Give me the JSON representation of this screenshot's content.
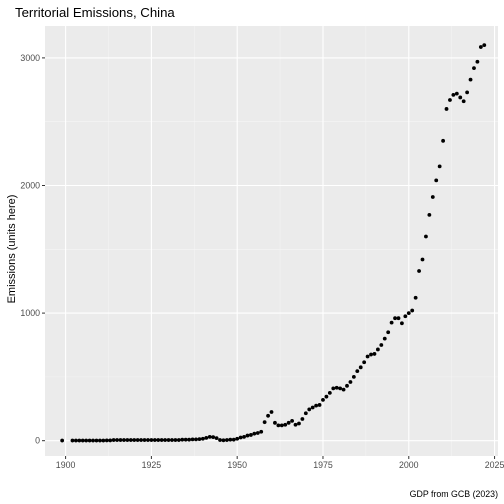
{
  "chart_data": {
    "type": "scatter",
    "title": "Territorial Emissions, China",
    "xlabel": "",
    "ylabel": "Emissions (units here)",
    "caption": "GDP from GCB (2023)",
    "xlim": [
      1894,
      2026
    ],
    "ylim": [
      -120,
      3250
    ],
    "x_ticks": [
      1900,
      1925,
      1950,
      1975,
      2000,
      2025
    ],
    "y_ticks": [
      0,
      1000,
      2000,
      3000
    ],
    "grid": true,
    "legend": "none",
    "colors": {
      "panel_background": "#ebebeb",
      "grid_major": "#ffffff",
      "grid_minor": "#f5f5f5",
      "point": "#000000",
      "tick_label": "#4d4d4d"
    },
    "points": [
      {
        "x": 1899,
        "y": 1
      },
      {
        "x": 1902,
        "y": 1
      },
      {
        "x": 1903,
        "y": 1
      },
      {
        "x": 1904,
        "y": 1
      },
      {
        "x": 1905,
        "y": 1
      },
      {
        "x": 1906,
        "y": 1
      },
      {
        "x": 1907,
        "y": 1
      },
      {
        "x": 1908,
        "y": 1
      },
      {
        "x": 1909,
        "y": 1
      },
      {
        "x": 1910,
        "y": 1
      },
      {
        "x": 1911,
        "y": 1
      },
      {
        "x": 1912,
        "y": 2
      },
      {
        "x": 1913,
        "y": 2
      },
      {
        "x": 1914,
        "y": 5
      },
      {
        "x": 1915,
        "y": 5
      },
      {
        "x": 1916,
        "y": 5
      },
      {
        "x": 1917,
        "y": 5
      },
      {
        "x": 1918,
        "y": 5
      },
      {
        "x": 1919,
        "y": 5
      },
      {
        "x": 1920,
        "y": 5
      },
      {
        "x": 1921,
        "y": 5
      },
      {
        "x": 1922,
        "y": 5
      },
      {
        "x": 1923,
        "y": 5
      },
      {
        "x": 1924,
        "y": 5
      },
      {
        "x": 1925,
        "y": 5
      },
      {
        "x": 1926,
        "y": 5
      },
      {
        "x": 1927,
        "y": 5
      },
      {
        "x": 1928,
        "y": 5
      },
      {
        "x": 1929,
        "y": 5
      },
      {
        "x": 1930,
        "y": 5
      },
      {
        "x": 1931,
        "y": 5
      },
      {
        "x": 1932,
        "y": 5
      },
      {
        "x": 1933,
        "y": 5
      },
      {
        "x": 1934,
        "y": 8
      },
      {
        "x": 1935,
        "y": 8
      },
      {
        "x": 1936,
        "y": 8
      },
      {
        "x": 1937,
        "y": 10
      },
      {
        "x": 1938,
        "y": 10
      },
      {
        "x": 1939,
        "y": 12
      },
      {
        "x": 1940,
        "y": 15
      },
      {
        "x": 1941,
        "y": 22
      },
      {
        "x": 1942,
        "y": 30
      },
      {
        "x": 1943,
        "y": 28
      },
      {
        "x": 1944,
        "y": 20
      },
      {
        "x": 1945,
        "y": 5
      },
      {
        "x": 1946,
        "y": 3
      },
      {
        "x": 1947,
        "y": 5
      },
      {
        "x": 1948,
        "y": 8
      },
      {
        "x": 1949,
        "y": 8
      },
      {
        "x": 1950,
        "y": 15
      },
      {
        "x": 1951,
        "y": 25
      },
      {
        "x": 1952,
        "y": 30
      },
      {
        "x": 1953,
        "y": 40
      },
      {
        "x": 1954,
        "y": 45
      },
      {
        "x": 1955,
        "y": 55
      },
      {
        "x": 1956,
        "y": 60
      },
      {
        "x": 1957,
        "y": 70
      },
      {
        "x": 1958,
        "y": 145
      },
      {
        "x": 1959,
        "y": 195
      },
      {
        "x": 1960,
        "y": 225
      },
      {
        "x": 1961,
        "y": 140
      },
      {
        "x": 1962,
        "y": 120
      },
      {
        "x": 1963,
        "y": 120
      },
      {
        "x": 1964,
        "y": 125
      },
      {
        "x": 1965,
        "y": 140
      },
      {
        "x": 1966,
        "y": 155
      },
      {
        "x": 1967,
        "y": 125
      },
      {
        "x": 1968,
        "y": 135
      },
      {
        "x": 1969,
        "y": 170
      },
      {
        "x": 1970,
        "y": 215
      },
      {
        "x": 1971,
        "y": 245
      },
      {
        "x": 1972,
        "y": 260
      },
      {
        "x": 1973,
        "y": 275
      },
      {
        "x": 1974,
        "y": 280
      },
      {
        "x": 1975,
        "y": 320
      },
      {
        "x": 1976,
        "y": 345
      },
      {
        "x": 1977,
        "y": 375
      },
      {
        "x": 1978,
        "y": 410
      },
      {
        "x": 1979,
        "y": 415
      },
      {
        "x": 1980,
        "y": 410
      },
      {
        "x": 1981,
        "y": 400
      },
      {
        "x": 1982,
        "y": 430
      },
      {
        "x": 1983,
        "y": 460
      },
      {
        "x": 1984,
        "y": 500
      },
      {
        "x": 1985,
        "y": 545
      },
      {
        "x": 1986,
        "y": 575
      },
      {
        "x": 1987,
        "y": 615
      },
      {
        "x": 1988,
        "y": 660
      },
      {
        "x": 1989,
        "y": 675
      },
      {
        "x": 1990,
        "y": 680
      },
      {
        "x": 1991,
        "y": 715
      },
      {
        "x": 1992,
        "y": 750
      },
      {
        "x": 1993,
        "y": 800
      },
      {
        "x": 1994,
        "y": 850
      },
      {
        "x": 1995,
        "y": 925
      },
      {
        "x": 1996,
        "y": 960
      },
      {
        "x": 1997,
        "y": 960
      },
      {
        "x": 1998,
        "y": 920
      },
      {
        "x": 1999,
        "y": 975
      },
      {
        "x": 2000,
        "y": 1000
      },
      {
        "x": 2001,
        "y": 1020
      },
      {
        "x": 2002,
        "y": 1120
      },
      {
        "x": 2003,
        "y": 1330
      },
      {
        "x": 2004,
        "y": 1420
      },
      {
        "x": 2005,
        "y": 1600
      },
      {
        "x": 2006,
        "y": 1770
      },
      {
        "x": 2007,
        "y": 1910
      },
      {
        "x": 2008,
        "y": 2040
      },
      {
        "x": 2009,
        "y": 2150
      },
      {
        "x": 2010,
        "y": 2350
      },
      {
        "x": 2011,
        "y": 2600
      },
      {
        "x": 2012,
        "y": 2670
      },
      {
        "x": 2013,
        "y": 2710
      },
      {
        "x": 2014,
        "y": 2720
      },
      {
        "x": 2015,
        "y": 2690
      },
      {
        "x": 2016,
        "y": 2660
      },
      {
        "x": 2017,
        "y": 2730
      },
      {
        "x": 2018,
        "y": 2830
      },
      {
        "x": 2019,
        "y": 2920
      },
      {
        "x": 2020,
        "y": 2970
      },
      {
        "x": 2021,
        "y": 3085
      },
      {
        "x": 2022,
        "y": 3100
      }
    ]
  }
}
